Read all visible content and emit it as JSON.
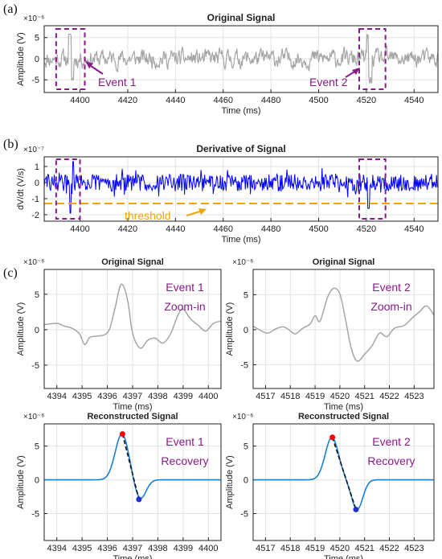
{
  "panel_labels": [
    "(a)",
    "(b)",
    "(c)"
  ],
  "chart_data": [
    {
      "id": "a",
      "type": "line",
      "title": "Original Signal",
      "xlabel": "Time (ms)",
      "ylabel": "Amplitude (V)",
      "y_exponent": "×10⁻⁶",
      "xlim": [
        4385,
        4550
      ],
      "ylim": [
        -8,
        7.8
      ],
      "xticks": [
        4400,
        4420,
        4440,
        4460,
        4480,
        4500,
        4520,
        4540
      ],
      "yticks": [
        -5,
        0,
        5
      ],
      "grid": true,
      "line_color": "#a6a6a6",
      "event_boxes": [
        [
          4390,
          4402
        ],
        [
          4517,
          4528
        ]
      ],
      "annotations": [
        "Event 1",
        "Event 2"
      ]
    },
    {
      "id": "b",
      "type": "line",
      "title": "Derivative of Signal",
      "xlabel": "Time (ms)",
      "ylabel": "dV/dt (V/s)",
      "y_exponent": "×10⁻⁷",
      "xlim": [
        4385,
        4550
      ],
      "ylim": [
        -2.4,
        1.6
      ],
      "xticks": [
        4400,
        4420,
        4440,
        4460,
        4480,
        4500,
        4520,
        4540
      ],
      "yticks": [
        -2,
        -1,
        0,
        1
      ],
      "grid": true,
      "line_color": "#0000ff",
      "threshold": -1.3,
      "threshold_label": "threshold",
      "threshold_color": "#f0a500",
      "event_boxes": [
        [
          4390,
          4400
        ],
        [
          4517,
          4528
        ]
      ]
    },
    {
      "id": "c1",
      "type": "line",
      "title": "Original Signal",
      "xlabel": "Time (ms)",
      "ylabel": "Amplitude (V)",
      "y_exponent": "×10⁻⁶",
      "xlim": [
        4393.5,
        4400.5
      ],
      "ylim": [
        -8.3,
        8.5
      ],
      "xticks": [
        4394,
        4395,
        4396,
        4397,
        4398,
        4399,
        4400
      ],
      "yticks": [
        -5,
        0,
        5
      ],
      "grid": true,
      "line_color": "#a6a6a6",
      "annotation": [
        "Event 1",
        "Zoom-in"
      ],
      "points": [
        [
          4393.5,
          0.7
        ],
        [
          4394,
          0.9
        ],
        [
          4394.3,
          0.5
        ],
        [
          4394.6,
          0.2
        ],
        [
          4394.9,
          -0.6
        ],
        [
          4395.1,
          -2.1
        ],
        [
          4395.3,
          -1.1
        ],
        [
          4395.6,
          -0.9
        ],
        [
          4395.9,
          -0.7
        ],
        [
          4396.1,
          0.2
        ],
        [
          4396.3,
          3.0
        ],
        [
          4396.55,
          6.4
        ],
        [
          4396.8,
          4.2
        ],
        [
          4397.0,
          -0.5
        ],
        [
          4397.3,
          -2.6
        ],
        [
          4397.6,
          -1.5
        ],
        [
          4397.9,
          -1.2
        ],
        [
          4398.2,
          -1.9
        ],
        [
          4398.5,
          -0.6
        ],
        [
          4398.8,
          2.1
        ],
        [
          4399.0,
          2.9
        ],
        [
          4399.3,
          1.5
        ],
        [
          4399.6,
          0.6
        ],
        [
          4399.9,
          -0.2
        ],
        [
          4400.2,
          0.9
        ],
        [
          4400.5,
          1.2
        ]
      ]
    },
    {
      "id": "c2",
      "type": "line",
      "title": "Original Signal",
      "xlabel": "Time (ms)",
      "ylabel": "Amplitude (V)",
      "y_exponent": "×10⁻⁶",
      "xlim": [
        4516.5,
        4523.8
      ],
      "ylim": [
        -8.4,
        8.6
      ],
      "xticks": [
        4517,
        4518,
        4519,
        4520,
        4521,
        4522,
        4523
      ],
      "yticks": [
        -5,
        0,
        5
      ],
      "grid": true,
      "line_color": "#a6a6a6",
      "annotation": [
        "Event 2",
        "Zoom-in"
      ],
      "points": [
        [
          4516.5,
          0.5
        ],
        [
          4516.8,
          -0.1
        ],
        [
          4517.1,
          -0.5
        ],
        [
          4517.4,
          0.1
        ],
        [
          4517.7,
          0.4
        ],
        [
          4517.9,
          0.1
        ],
        [
          4518.2,
          -0.6
        ],
        [
          4518.5,
          0.2
        ],
        [
          4518.8,
          0.8
        ],
        [
          4519.0,
          2.0
        ],
        [
          4519.2,
          1.2
        ],
        [
          4519.5,
          4.6
        ],
        [
          4519.75,
          5.9
        ],
        [
          4520.0,
          5.1
        ],
        [
          4520.2,
          2.0
        ],
        [
          4520.45,
          -2.5
        ],
        [
          4520.7,
          -4.5
        ],
        [
          4521.0,
          -3.5
        ],
        [
          4521.3,
          -2.3
        ],
        [
          4521.6,
          -0.5
        ],
        [
          4521.9,
          -1.0
        ],
        [
          4522.2,
          0.2
        ],
        [
          4522.6,
          0.6
        ],
        [
          4522.9,
          1.6
        ],
        [
          4523.2,
          2.5
        ],
        [
          4523.5,
          3.4
        ],
        [
          4523.8,
          2.1
        ]
      ]
    },
    {
      "id": "c3",
      "type": "line",
      "title": "Reconstructed Signal",
      "xlabel": "Time (ms)",
      "ylabel": "Amplitude (V)",
      "y_exponent": "×10⁻⁶",
      "xlim": [
        4393.5,
        4400.5
      ],
      "ylim": [
        -9,
        8.3
      ],
      "xticks": [
        4394,
        4395,
        4396,
        4397,
        4398,
        4399,
        4400
      ],
      "yticks": [
        -5,
        0,
        5
      ],
      "grid": true,
      "line_color": "#1a7fd4",
      "annotation": [
        "Event 1",
        "Recovery"
      ],
      "peak": [
        4396.6,
        6.8
      ],
      "trough": [
        4397.25,
        -2.9
      ]
    },
    {
      "id": "c4",
      "type": "line",
      "title": "Reconstructed Signal",
      "xlabel": "Time (ms)",
      "ylabel": "Amplitude (V)",
      "y_exponent": "×10⁻⁶",
      "xlim": [
        4516.5,
        4523.8
      ],
      "ylim": [
        -9,
        8.3
      ],
      "xticks": [
        4517,
        4518,
        4519,
        4520,
        4521,
        4522,
        4523
      ],
      "yticks": [
        -5,
        0,
        5
      ],
      "grid": true,
      "line_color": "#1a7fd4",
      "annotation": [
        "Event 2",
        "Recovery"
      ],
      "peak": [
        4519.7,
        6.3
      ],
      "trough": [
        4520.65,
        -4.4
      ]
    }
  ],
  "colors": {
    "event_box": "#8a1a8a",
    "peak": "#ff0000",
    "trough": "#1f2fd4",
    "axis": "#222222",
    "grid": "#e2e2e2"
  }
}
